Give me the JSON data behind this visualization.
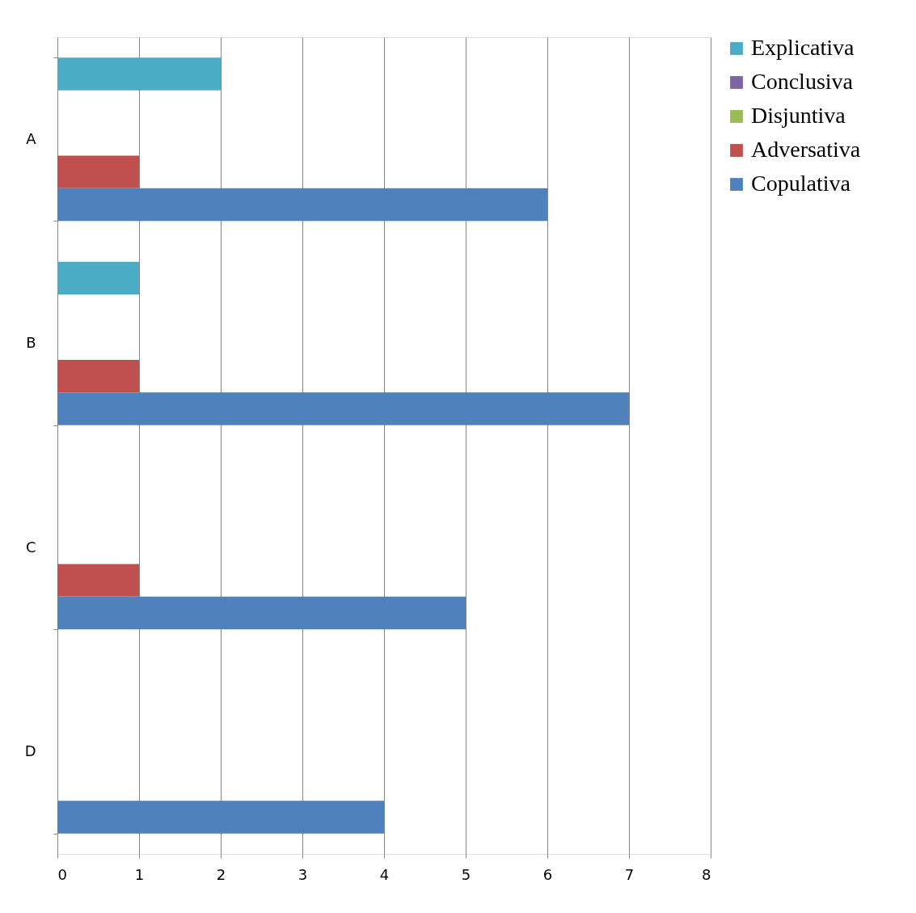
{
  "chart_data": {
    "type": "bar",
    "orientation": "horizontal",
    "categories": [
      "A",
      "B",
      "C",
      "D"
    ],
    "series": [
      {
        "name": "Explicativa",
        "color": "#4bacc6",
        "values": [
          2,
          1,
          0,
          0
        ]
      },
      {
        "name": "Conclusiva",
        "color": "#8064a2",
        "values": [
          0,
          0,
          0,
          0
        ]
      },
      {
        "name": "Disjuntiva",
        "color": "#9bbb59",
        "values": [
          0,
          0,
          0,
          0
        ]
      },
      {
        "name": "Adversativa",
        "color": "#c0504d",
        "values": [
          1,
          1,
          1,
          0
        ]
      },
      {
        "name": "Copulativa",
        "color": "#4f81bd",
        "values": [
          6,
          7,
          5,
          4
        ]
      }
    ],
    "xlim": [
      0,
      8
    ],
    "xticks": [
      0,
      1,
      2,
      3,
      4,
      5,
      6,
      7,
      8
    ],
    "grid": "x",
    "legend": "right"
  }
}
